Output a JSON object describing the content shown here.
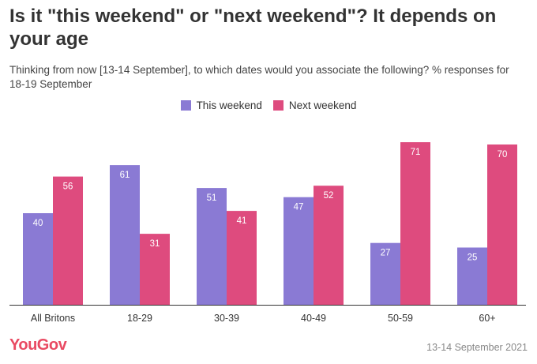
{
  "title": "Is it \"this weekend\" or \"next weekend\"? It depends on your age",
  "subtitle": "Thinking from now [13-14 September], to which dates would you associate the following? % responses for 18-19 September",
  "footer": {
    "logo": "YouGov",
    "date": "13-14 September 2021"
  },
  "chart_data": {
    "type": "bar",
    "categories": [
      "All Britons",
      "18-29",
      "30-39",
      "40-49",
      "50-59",
      "60+"
    ],
    "series": [
      {
        "name": "This weekend",
        "color": "#8a7ad4",
        "values": [
          40,
          61,
          51,
          47,
          27,
          25
        ]
      },
      {
        "name": "Next weekend",
        "color": "#de4b7e",
        "values": [
          56,
          31,
          41,
          52,
          71,
          70
        ]
      }
    ],
    "ylim": [
      0,
      100
    ],
    "grid": false,
    "legend_position": "top-center",
    "data_labels": true
  }
}
